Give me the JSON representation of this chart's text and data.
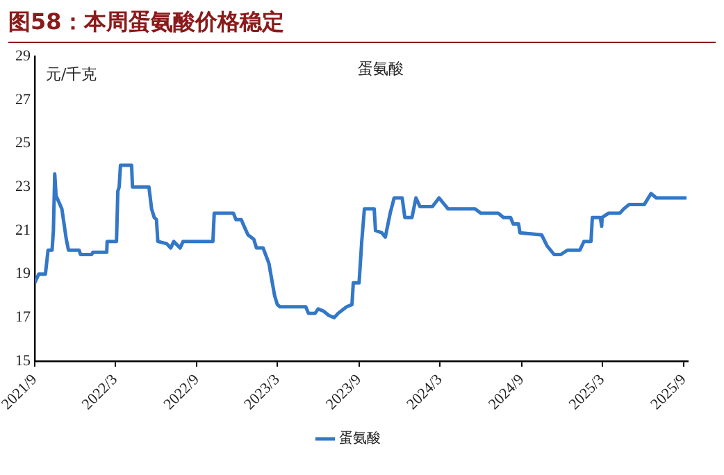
{
  "chart_data": {
    "type": "line",
    "title": "图58：本周蛋氨酸价格稳定",
    "annotations": [
      "元/千克",
      "蛋氨酸"
    ],
    "x": [
      "2021-09-01",
      "2021-09-10",
      "2021-09-25",
      "2021-10-01",
      "2021-10-10",
      "2021-10-13",
      "2021-10-16",
      "2021-10-19",
      "2021-11-01",
      "2021-11-11",
      "2021-11-16",
      "2021-12-10",
      "2021-12-13",
      "2022-01-07",
      "2022-01-10",
      "2022-02-10",
      "2022-02-11",
      "2022-03-04",
      "2022-03-07",
      "2022-03-10",
      "2022-03-13",
      "2022-04-07",
      "2022-04-09",
      "2022-05-16",
      "2022-05-22",
      "2022-05-28",
      "2022-06-02",
      "2022-06-05",
      "2022-06-25",
      "2022-07-04",
      "2022-07-11",
      "2022-07-25",
      "2022-08-01",
      "2022-10-07",
      "2022-10-10",
      "2022-11-22",
      "2022-11-28",
      "2022-12-10",
      "2022-12-14",
      "2022-12-25",
      "2023-01-07",
      "2023-01-13",
      "2023-01-28",
      "2023-02-10",
      "2023-02-16",
      "2023-02-23",
      "2023-03-01",
      "2023-03-07",
      "2023-05-04",
      "2023-05-10",
      "2023-05-25",
      "2023-06-01",
      "2023-06-13",
      "2023-06-25",
      "2023-07-07",
      "2023-07-16",
      "2023-08-04",
      "2023-08-16",
      "2023-08-19",
      "2023-09-01",
      "2023-09-07",
      "2023-09-13",
      "2023-10-05",
      "2023-10-08",
      "2023-10-22",
      "2023-10-30",
      "2023-11-10",
      "2023-11-19",
      "2023-12-07",
      "2023-12-13",
      "2023-12-29",
      "2024-01-07",
      "2024-01-16",
      "2024-02-13",
      "2024-02-28",
      "2024-03-19",
      "2024-05-19",
      "2024-06-01",
      "2024-07-10",
      "2024-07-22",
      "2024-08-07",
      "2024-08-13",
      "2024-08-25",
      "2024-08-28",
      "2024-10-16",
      "2024-10-28",
      "2024-11-13",
      "2024-11-28",
      "2024-12-13",
      "2025-01-10",
      "2025-01-19",
      "2025-02-04",
      "2025-02-07",
      "2025-02-25",
      "2025-02-28",
      "2025-03-01",
      "2025-03-16",
      "2025-04-10",
      "2025-04-19",
      "2025-05-01",
      "2025-06-04",
      "2025-06-19",
      "2025-07-01",
      "2025-09-07"
    ],
    "series": [
      {
        "name": "蛋氨酸",
        "color": "#3377c8",
        "values": [
          18.6,
          19.0,
          19.0,
          20.1,
          20.1,
          21.0,
          23.6,
          22.6,
          22.0,
          20.6,
          20.1,
          20.1,
          19.9,
          19.9,
          20.0,
          20.0,
          20.5,
          20.5,
          22.8,
          23.0,
          24.0,
          24.0,
          23.0,
          23.0,
          22.0,
          21.6,
          21.5,
          20.5,
          20.4,
          20.2,
          20.5,
          20.2,
          20.5,
          20.5,
          21.8,
          21.8,
          21.5,
          21.5,
          21.3,
          20.8,
          20.6,
          20.2,
          20.2,
          19.5,
          18.8,
          18.0,
          17.6,
          17.5,
          17.5,
          17.2,
          17.2,
          17.4,
          17.3,
          17.1,
          17.0,
          17.2,
          17.5,
          17.6,
          18.6,
          18.6,
          20.5,
          22.0,
          22.0,
          21.0,
          20.9,
          20.7,
          21.8,
          22.5,
          22.5,
          21.6,
          21.6,
          22.5,
          22.1,
          22.1,
          22.5,
          22.0,
          22.0,
          21.8,
          21.8,
          21.6,
          21.6,
          21.3,
          21.3,
          20.9,
          20.8,
          20.3,
          19.9,
          19.9,
          20.1,
          20.1,
          20.5,
          20.5,
          21.6,
          21.6,
          21.2,
          21.6,
          21.8,
          21.8,
          22.0,
          22.2,
          22.2,
          22.7,
          22.5,
          22.5
        ]
      }
    ],
    "xlim": [
      "2021-09-01",
      "2025-09-10"
    ],
    "xticks": [
      {
        "value": "2021-09",
        "label": "2021/9"
      },
      {
        "value": "2022-03",
        "label": "2022/3"
      },
      {
        "value": "2022-09",
        "label": "2022/9"
      },
      {
        "value": "2023-03",
        "label": "2023/3"
      },
      {
        "value": "2023-09",
        "label": "2023/9"
      },
      {
        "value": "2024-03",
        "label": "2024/3"
      },
      {
        "value": "2024-09",
        "label": "2024/9"
      },
      {
        "value": "2025-03",
        "label": "2025/3"
      },
      {
        "value": "2025-09",
        "label": "2025/9"
      }
    ],
    "ylim": [
      15,
      29
    ],
    "yticks": [
      15,
      17,
      19,
      21,
      23,
      25,
      27,
      29
    ],
    "grid": false,
    "legend": "bottom",
    "marker": "none",
    "line_style": "solid"
  }
}
